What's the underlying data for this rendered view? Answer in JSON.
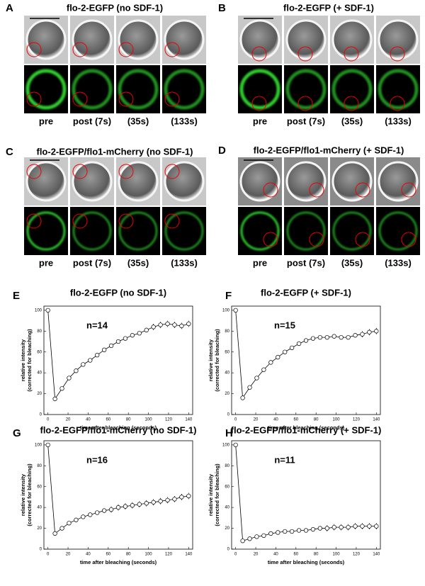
{
  "image_panels": [
    {
      "letter": "A",
      "title": "flo-2-EGFP (no SDF-1)",
      "frames": [
        "pre",
        "post (7s)",
        "(35s)",
        "(133s)"
      ]
    },
    {
      "letter": "B",
      "title": "flo-2-EGFP (+ SDF-1)",
      "frames": [
        "pre",
        "post (7s)",
        "(35s)",
        "(133s)"
      ]
    },
    {
      "letter": "C",
      "title": "flo-2-EGFP/flo1-mCherry  (no SDF-1)",
      "frames": [
        "pre",
        "post (7s)",
        "(35s)",
        "(133s)"
      ]
    },
    {
      "letter": "D",
      "title": "flo-2-EGFP/flo1-mCherry (+ SDF-1)",
      "frames": [
        "pre",
        "post (7s)",
        "(35s)",
        "(133s)"
      ]
    }
  ],
  "chart_data": [
    {
      "type": "line",
      "panel": "E",
      "title": "flo-2-EGFP (no SDF-1)",
      "annotation": "n=14",
      "xlabel": "time after bleaching (seconds)",
      "ylabel": [
        "relative intensity",
        "(corrected for bleaching)"
      ],
      "x": [
        0,
        7,
        14,
        21,
        28,
        35,
        42,
        49,
        56,
        63,
        70,
        77,
        84,
        91,
        98,
        105,
        112,
        119,
        126,
        133,
        140
      ],
      "values": [
        100,
        15,
        25,
        35,
        42,
        48,
        52,
        57,
        62,
        66,
        70,
        73,
        76,
        78,
        81,
        84,
        86,
        87,
        86,
        85,
        87
      ],
      "errors": [
        1,
        1,
        1,
        2,
        2,
        2,
        2,
        2,
        2,
        2,
        2,
        2,
        2,
        2,
        2,
        3,
        3,
        3,
        3,
        3,
        3
      ],
      "xlim": [
        -4,
        144
      ],
      "ylim": [
        0,
        104
      ],
      "xticks": [
        0,
        20,
        40,
        60,
        80,
        100,
        120,
        140
      ],
      "yticks": [
        0,
        20,
        40,
        60,
        80,
        100
      ]
    },
    {
      "type": "line",
      "panel": "F",
      "title": "flo-2-EGFP (+ SDF-1)",
      "annotation": "n=15",
      "xlabel": "time after bleaching (seconds)",
      "ylabel": [
        "relative intensity",
        "(corrected for bleaching)"
      ],
      "x": [
        0,
        7,
        14,
        21,
        28,
        35,
        42,
        49,
        56,
        63,
        70,
        77,
        84,
        91,
        98,
        105,
        112,
        119,
        126,
        133,
        140
      ],
      "values": [
        100,
        16,
        26,
        35,
        43,
        50,
        55,
        60,
        64,
        68,
        71,
        73,
        74,
        74,
        75,
        74,
        74,
        76,
        77,
        79,
        80
      ],
      "errors": [
        1,
        1,
        1,
        2,
        2,
        2,
        2,
        2,
        2,
        2,
        2,
        2,
        2,
        2,
        2,
        2,
        2,
        2,
        3,
        3,
        3
      ],
      "xlim": [
        -4,
        144
      ],
      "ylim": [
        0,
        104
      ],
      "xticks": [
        0,
        20,
        40,
        60,
        80,
        100,
        120,
        140
      ],
      "yticks": [
        0,
        20,
        40,
        60,
        80,
        100
      ]
    },
    {
      "type": "line",
      "panel": "G",
      "title": "flo-2-EGFP/flo1-mCherry (no SDF-1)",
      "annotation": "n=16",
      "xlabel": "time after bleaching (seconds)",
      "ylabel": [
        "relative intensity",
        "(corrected for bleaching)"
      ],
      "x": [
        0,
        7,
        14,
        21,
        28,
        35,
        42,
        49,
        56,
        63,
        70,
        77,
        84,
        91,
        98,
        105,
        112,
        119,
        126,
        133,
        140
      ],
      "values": [
        100,
        15,
        20,
        25,
        28,
        31,
        33,
        35,
        37,
        38,
        40,
        41,
        42,
        43,
        44,
        45,
        46,
        47,
        48,
        50,
        51
      ],
      "errors": [
        1,
        1,
        2,
        2,
        2,
        2,
        2,
        2,
        2,
        3,
        3,
        3,
        3,
        3,
        3,
        3,
        3,
        3,
        3,
        3,
        3
      ],
      "xlim": [
        -4,
        144
      ],
      "ylim": [
        0,
        104
      ],
      "xticks": [
        0,
        20,
        40,
        60,
        80,
        100,
        120,
        140
      ],
      "yticks": [
        0,
        20,
        40,
        60,
        80,
        100
      ]
    },
    {
      "type": "line",
      "panel": "H",
      "title": "flo-2-EGFP/flo1-mCherry (+ SDF-1)",
      "annotation": "n=11",
      "xlabel": "time after bleaching (seconds)",
      "ylabel": [
        "relative intensity",
        "(corrected for bleaching)"
      ],
      "x": [
        0,
        7,
        14,
        21,
        28,
        35,
        42,
        49,
        56,
        63,
        70,
        77,
        84,
        91,
        98,
        105,
        112,
        119,
        126,
        133,
        140
      ],
      "values": [
        100,
        8,
        10,
        12,
        13,
        15,
        16,
        17,
        17,
        18,
        18,
        19,
        20,
        20,
        21,
        21,
        21,
        22,
        22,
        22,
        22
      ],
      "errors": [
        1,
        1,
        1,
        2,
        2,
        2,
        2,
        2,
        2,
        2,
        2,
        2,
        2,
        3,
        3,
        3,
        3,
        3,
        3,
        3,
        3
      ],
      "xlim": [
        -4,
        144
      ],
      "ylim": [
        0,
        104
      ],
      "xticks": [
        0,
        20,
        40,
        60,
        80,
        100,
        120,
        140
      ],
      "yticks": [
        0,
        20,
        40,
        60,
        80,
        100
      ]
    }
  ]
}
